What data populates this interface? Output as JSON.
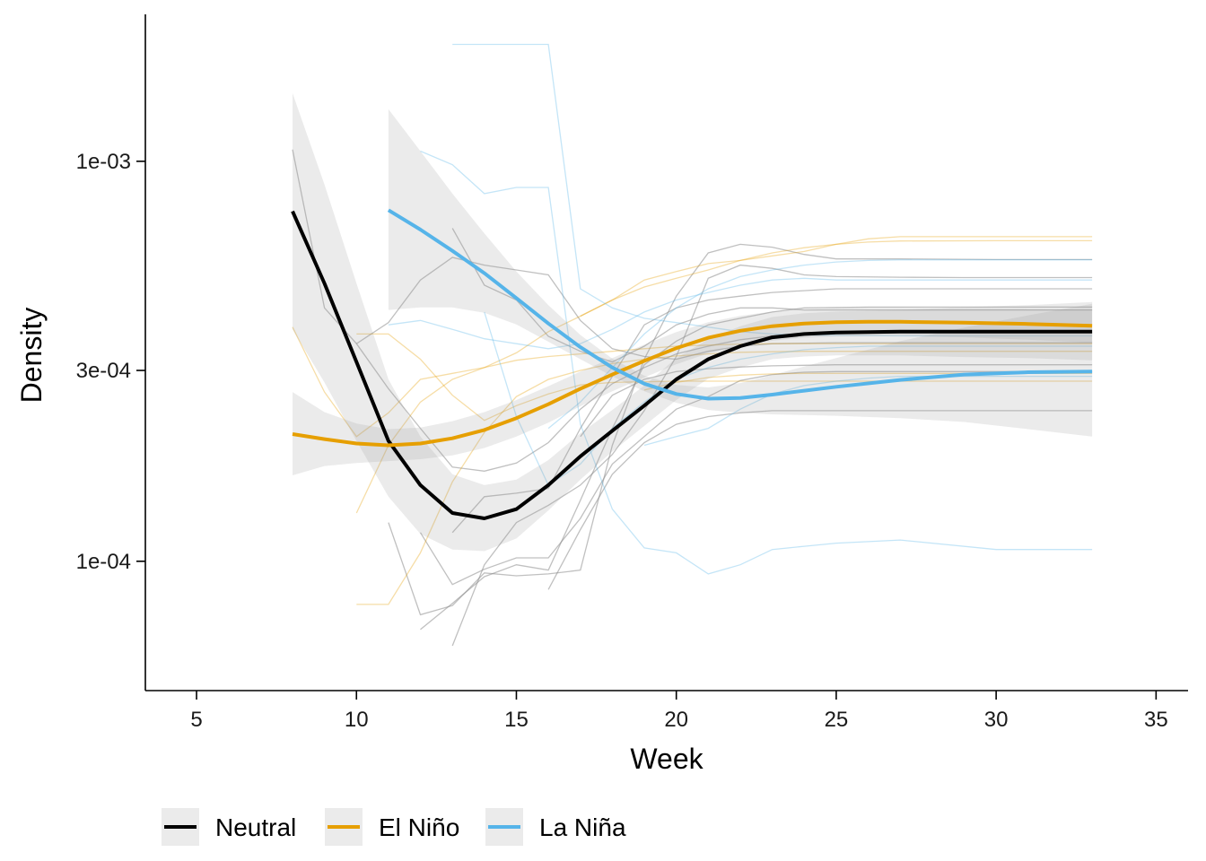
{
  "chart_data": {
    "type": "line",
    "xlabel": "Week",
    "ylabel": "Density",
    "xlim": [
      3.4,
      36.0
    ],
    "ylim": [
      4.75e-05,
      0.00233
    ],
    "log_y": true,
    "x_ticks": [
      5,
      10,
      15,
      20,
      25,
      30,
      35
    ],
    "x_tick_labels": [
      "5",
      "10",
      "15",
      "20",
      "25",
      "30",
      "35"
    ],
    "y_ticks": [
      0.0001,
      0.0003,
      0.001
    ],
    "y_tick_labels": [
      "1e-04",
      "3e-04",
      "1e-03"
    ],
    "grid": false,
    "legend_position": "bottom-left",
    "smooth_series": [
      {
        "name": "Neutral",
        "color": "#000000",
        "x": [
          8,
          9,
          10,
          11,
          12,
          13,
          14,
          15,
          16,
          17,
          18,
          19,
          20,
          21,
          22,
          23,
          24,
          25,
          27,
          29,
          31,
          33
        ],
        "y": [
          0.00075,
          0.000495,
          0.000315,
          0.0002,
          0.000155,
          0.000132,
          0.000128,
          0.000135,
          0.000155,
          0.000183,
          0.000212,
          0.000245,
          0.000285,
          0.00032,
          0.000345,
          0.000363,
          0.00037,
          0.000373,
          0.000375,
          0.000375,
          0.000375,
          0.000375
        ],
        "ci_lower": [
          0.00038,
          0.00028,
          0.0002,
          0.000145,
          0.000117,
          0.000107,
          0.000106,
          0.000114,
          0.000134,
          0.00016,
          0.000188,
          0.000218,
          0.000253,
          0.000286,
          0.000305,
          0.00032,
          0.000325,
          0.000327,
          0.000327,
          0.000324,
          0.000322,
          0.000318
        ],
        "ci_upper": [
          0.00148,
          0.000875,
          0.000495,
          0.000285,
          0.000205,
          0.000165,
          0.000155,
          0.00016,
          0.000179,
          0.000209,
          0.000239,
          0.000275,
          0.000322,
          0.000359,
          0.000387,
          0.000408,
          0.000417,
          0.000421,
          0.000425,
          0.000432,
          0.000437,
          0.000445
        ]
      },
      {
        "name": "El Niño",
        "color": "#E69F00",
        "x": [
          8,
          9,
          10,
          11,
          12,
          13,
          14,
          15,
          16,
          17,
          18,
          19,
          20,
          21,
          22,
          23,
          24,
          25,
          26,
          27,
          29,
          31,
          33
        ],
        "y": [
          0.000208,
          0.000202,
          0.000197,
          0.000195,
          0.000197,
          0.000203,
          0.000213,
          0.000228,
          0.000247,
          0.00027,
          0.000293,
          0.000317,
          0.000341,
          0.000362,
          0.000377,
          0.000387,
          0.000393,
          0.000396,
          0.000397,
          0.000397,
          0.000395,
          0.000392,
          0.000388
        ],
        "ci_lower": [
          0.000164,
          0.000173,
          0.000176,
          0.000178,
          0.00018,
          0.000184,
          0.000192,
          0.000205,
          0.000222,
          0.000244,
          0.000266,
          0.000288,
          0.000311,
          0.000331,
          0.000346,
          0.000356,
          0.000362,
          0.000365,
          0.000366,
          0.000366,
          0.000363,
          0.000358,
          0.000352
        ],
        "ci_upper": [
          0.000265,
          0.000236,
          0.000221,
          0.000214,
          0.000216,
          0.000224,
          0.000236,
          0.000253,
          0.000274,
          0.000298,
          0.000322,
          0.000348,
          0.000374,
          0.000396,
          0.000411,
          0.000421,
          0.000427,
          0.00043,
          0.000431,
          0.000431,
          0.000429,
          0.000428,
          0.000427
        ]
      },
      {
        "name": "La Niña",
        "color": "#56B4E9",
        "x": [
          11,
          12,
          13,
          14,
          15,
          16,
          17,
          18,
          19,
          20,
          21,
          22,
          23,
          24,
          25,
          27,
          29,
          31,
          33
        ],
        "y": [
          0.000755,
          0.000675,
          0.000597,
          0.000525,
          0.000455,
          0.000393,
          0.000343,
          0.000305,
          0.000278,
          0.000262,
          0.000255,
          0.000256,
          0.000261,
          0.000267,
          0.000273,
          0.000284,
          0.000293,
          0.000297,
          0.000298
        ],
        "ci_lower": [
          0.000425,
          0.000431,
          0.000431,
          0.000418,
          0.000391,
          0.000354,
          0.00032,
          0.00029,
          0.000266,
          0.000249,
          0.000239,
          0.000235,
          0.000233,
          0.000232,
          0.000231,
          0.000228,
          0.000223,
          0.000214,
          0.000205
        ],
        "ci_upper": [
          0.00135,
          0.00106,
          0.00083,
          0.00066,
          0.00053,
          0.000437,
          0.000368,
          0.000321,
          0.000291,
          0.000276,
          0.000272,
          0.000279,
          0.000292,
          0.000307,
          0.000322,
          0.000355,
          0.000384,
          0.000412,
          0.00044
        ]
      }
    ],
    "raw_series": [
      {
        "group": "Neutral",
        "x": [
          8,
          9,
          10,
          11,
          12,
          13,
          14,
          15,
          16,
          17,
          18,
          19,
          20,
          21,
          22,
          23,
          24,
          25,
          27,
          30,
          33
        ],
        "y": [
          0.00107,
          0.00043,
          0.00035,
          0.00027,
          0.000215,
          0.000172,
          0.000168,
          0.000176,
          0.000198,
          0.00024,
          0.000278,
          0.000305,
          0.00033,
          0.000345,
          0.000358,
          0.000366,
          0.00037,
          0.000372,
          0.000373,
          0.000373,
          0.000373
        ]
      },
      {
        "group": "Neutral",
        "x": [
          10,
          11,
          12,
          13,
          14,
          15,
          16,
          17,
          18,
          19,
          20,
          21,
          22,
          23,
          25,
          28,
          33
        ],
        "y": [
          0.00035,
          0.000395,
          0.000505,
          0.000575,
          0.00055,
          0.000535,
          0.00052,
          0.0004,
          0.00034,
          0.000325,
          0.00032,
          0.000335,
          0.000345,
          0.00035,
          0.000352,
          0.000352,
          0.000352
        ]
      },
      {
        "group": "Neutral",
        "x": [
          11,
          12,
          13,
          14,
          15,
          16,
          17,
          18,
          19,
          20,
          21,
          22,
          23,
          24,
          25,
          27,
          30,
          33
        ],
        "y": [
          0.000125,
          7.35e-05,
          7.75e-05,
          9.35e-05,
          9.2e-05,
          9.3e-05,
          9.5e-05,
          0.000195,
          0.00032,
          0.00046,
          0.00059,
          0.00062,
          0.00061,
          0.000585,
          0.00057,
          0.00057,
          0.000568,
          0.000568
        ]
      },
      {
        "group": "Neutral",
        "x": [
          13,
          14,
          15,
          16,
          17,
          18,
          19,
          20,
          21,
          22,
          23,
          25,
          28,
          33
        ],
        "y": [
          0.000118,
          0.000145,
          0.000148,
          0.000152,
          0.000215,
          0.00029,
          0.00039,
          0.00043,
          0.00045,
          0.00046,
          0.00047,
          0.00048,
          0.00048,
          0.00048
        ]
      },
      {
        "group": "Neutral",
        "x": [
          13,
          14,
          15,
          16,
          17,
          18,
          19,
          20,
          21,
          22,
          23,
          24,
          26,
          29,
          33
        ],
        "y": [
          0.00068,
          0.00049,
          0.00045,
          0.000365,
          0.000335,
          0.000315,
          0.000345,
          0.00039,
          0.000415,
          0.00043,
          0.00043,
          0.000425,
          0.000425,
          0.000425,
          0.000425
        ]
      },
      {
        "group": "Neutral",
        "x": [
          12,
          13,
          14,
          15,
          16,
          17,
          18,
          19,
          20,
          21,
          22,
          23,
          24,
          25,
          28,
          33
        ],
        "y": [
          0.000118,
          8.75e-05,
          9.55e-05,
          0.000102,
          0.000102,
          0.000128,
          0.000175,
          0.000205,
          0.00024,
          0.000258,
          0.000283,
          0.000293,
          0.000297,
          0.000298,
          0.000298,
          0.000298
        ]
      },
      {
        "group": "Neutral",
        "x": [
          12,
          13,
          14,
          15,
          16,
          17,
          18,
          19,
          20,
          21,
          22,
          23,
          24,
          26,
          29,
          33
        ],
        "y": [
          6.75e-05,
          7.85e-05,
          9.15e-05,
          9.8e-05,
          9.5e-05,
          0.000142,
          0.000215,
          0.00031,
          0.000355,
          0.00039,
          0.000405,
          0.00042,
          0.00043,
          0.000432,
          0.000432,
          0.000432
        ]
      },
      {
        "group": "Neutral",
        "x": [
          16,
          17,
          18,
          19,
          20,
          21,
          22,
          23,
          24,
          25,
          27,
          30,
          33
        ],
        "y": [
          8.5e-05,
          0.00012,
          0.000165,
          0.000198,
          0.00022,
          0.00023,
          0.000235,
          0.000238,
          0.000238,
          0.000238,
          0.000238,
          0.000238,
          0.000238
        ]
      },
      {
        "group": "Neutral",
        "x": [
          13,
          14,
          15,
          16,
          17,
          18,
          19,
          20,
          21,
          22,
          23,
          24,
          25,
          27,
          29,
          33
        ],
        "y": [
          6.15e-05,
          9.8e-05,
          0.000125,
          0.000138,
          0.000155,
          0.000185,
          0.000238,
          0.000325,
          0.00051,
          0.00055,
          0.00054,
          0.00052,
          0.000515,
          0.000513,
          0.000512,
          0.000512
        ]
      },
      {
        "group": "Neutral",
        "x": [
          17,
          18,
          19,
          20,
          21,
          22,
          23,
          24,
          25,
          27,
          30,
          33
        ],
        "y": [
          0.000205,
          0.00026,
          0.000285,
          0.000298,
          0.000303,
          0.000306,
          0.000308,
          0.000309,
          0.00031,
          0.00031,
          0.00031,
          0.00031
        ]
      },
      {
        "group": "El Niño",
        "x": [
          8,
          9,
          10,
          11,
          12,
          13,
          14,
          15,
          16,
          17,
          18,
          19,
          20,
          21,
          22,
          23,
          24,
          26,
          29,
          33
        ],
        "y": [
          0.000385,
          0.000265,
          0.000205,
          0.000235,
          0.000285,
          0.000295,
          0.000305,
          0.000318,
          0.000325,
          0.00033,
          0.000335,
          0.00034,
          0.000345,
          0.000347,
          0.000349,
          0.00035,
          0.00035,
          0.00035,
          0.00035,
          0.00035
        ]
      },
      {
        "group": "El Niño",
        "x": [
          10,
          11,
          12,
          13,
          14,
          15,
          16,
          17,
          18,
          19,
          20,
          21,
          22,
          23,
          24,
          25,
          27,
          30,
          33
        ],
        "y": [
          0.00037,
          0.00037,
          0.00032,
          0.00026,
          0.000225,
          0.000245,
          0.000262,
          0.000276,
          0.00028,
          0.000281,
          0.000282,
          0.000282,
          0.000282,
          0.000282,
          0.000282,
          0.000282,
          0.000282,
          0.000282,
          0.000282
        ]
      },
      {
        "group": "El Niño",
        "x": [
          10,
          11,
          12,
          13,
          14,
          15,
          16,
          17,
          18,
          19,
          20,
          21,
          22,
          23,
          24,
          25,
          26,
          27,
          30,
          33
        ],
        "y": [
          0.000132,
          0.000195,
          0.00025,
          0.000285,
          0.000305,
          0.000332,
          0.000375,
          0.00041,
          0.00045,
          0.000505,
          0.00053,
          0.000555,
          0.000565,
          0.00058,
          0.000595,
          0.00062,
          0.00064,
          0.000648,
          0.000648,
          0.000648
        ]
      },
      {
        "group": "El Niño",
        "x": [
          10,
          11,
          12,
          13,
          14,
          15,
          16,
          17,
          18,
          19,
          20,
          21,
          22,
          23,
          24,
          25,
          27,
          30,
          33
        ],
        "y": [
          7.8e-05,
          7.8e-05,
          0.000105,
          0.000158,
          0.00021,
          0.000258,
          0.000285,
          0.0003,
          0.000312,
          0.00032,
          0.000326,
          0.00033,
          0.000333,
          0.000334,
          0.000335,
          0.000335,
          0.000335,
          0.000335,
          0.000335
        ]
      },
      {
        "group": "El Niño",
        "x": [
          17,
          18,
          19,
          20,
          21,
          22,
          23,
          24,
          25,
          26,
          27,
          30,
          33
        ],
        "y": [
          0.00041,
          0.00045,
          0.000485,
          0.00051,
          0.000535,
          0.000565,
          0.00059,
          0.000608,
          0.00062,
          0.000628,
          0.000632,
          0.000633,
          0.000633
        ]
      },
      {
        "group": "El Niño",
        "x": [
          19,
          20,
          21,
          22,
          23,
          24,
          25,
          27,
          30,
          33
        ],
        "y": [
          0.000268,
          0.00028,
          0.000288,
          0.000292,
          0.000294,
          0.000295,
          0.000295,
          0.000295,
          0.000295,
          0.000295
        ]
      },
      {
        "group": "La Niña",
        "x": [
          13,
          14,
          15,
          16,
          17,
          18,
          19,
          20,
          21,
          22,
          23,
          24,
          25,
          27,
          30,
          33
        ],
        "y": [
          0.00196,
          0.00196,
          0.00196,
          0.00196,
          0.00048,
          0.00043,
          0.000405,
          0.000395,
          0.000385,
          0.000375,
          0.00037,
          0.000368,
          0.000367,
          0.000366,
          0.000366,
          0.000366
        ]
      },
      {
        "group": "La Niña",
        "x": [
          12,
          13,
          14,
          15,
          16,
          17,
          18,
          19,
          20,
          21,
          22,
          23,
          24,
          25,
          27,
          30,
          33
        ],
        "y": [
          0.00106,
          0.00098,
          0.00083,
          0.00086,
          0.00086,
          0.00022,
          0.000135,
          0.000108,
          0.000105,
          9.3e-05,
          9.8e-05,
          0.000107,
          0.000109,
          0.000111,
          0.000113,
          0.000107,
          0.000107
        ]
      },
      {
        "group": "La Niña",
        "x": [
          11,
          12,
          13,
          14,
          15,
          16,
          17,
          18,
          19,
          20,
          21,
          22,
          23,
          24,
          25,
          26,
          28,
          30,
          33
        ],
        "y": [
          0.00039,
          0.0004,
          0.00038,
          0.00036,
          0.00035,
          0.00034,
          0.00035,
          0.00038,
          0.00042,
          0.00045,
          0.00047,
          0.00049,
          0.000505,
          0.00051,
          0.000505,
          0.000505,
          0.000505,
          0.000505,
          0.000505
        ]
      },
      {
        "group": "La Niña",
        "x": [
          14,
          15,
          16,
          17,
          18,
          19,
          20,
          21,
          22,
          23,
          24,
          25,
          26,
          27,
          30,
          33
        ],
        "y": [
          0.00042,
          0.00023,
          0.000155,
          0.000175,
          0.000215,
          0.00025,
          0.000285,
          0.000305,
          0.00032,
          0.00033,
          0.000338,
          0.000342,
          0.000345,
          0.000345,
          0.000345,
          0.000345
        ]
      },
      {
        "group": "La Niña",
        "x": [
          16,
          17,
          18,
          19,
          20,
          21,
          22,
          23,
          24,
          25,
          26,
          27,
          30,
          33
        ],
        "y": [
          0.000215,
          0.00025,
          0.000305,
          0.00037,
          0.00043,
          0.00048,
          0.000515,
          0.000535,
          0.00055,
          0.00056,
          0.000565,
          0.000567,
          0.000567,
          0.000567
        ]
      },
      {
        "group": "La Niña",
        "x": [
          19,
          20,
          21,
          22,
          23,
          24,
          25,
          26,
          27,
          30,
          33
        ],
        "y": [
          0.000195,
          0.000205,
          0.000215,
          0.00024,
          0.000262,
          0.000275,
          0.000282,
          0.000287,
          0.00029,
          0.00029,
          0.00029
        ]
      }
    ],
    "legend": [
      "Neutral",
      "El Niño",
      "La Niña"
    ]
  }
}
